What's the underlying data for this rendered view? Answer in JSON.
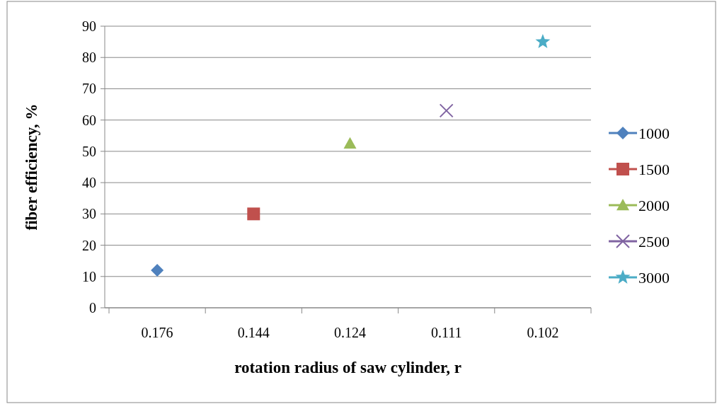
{
  "chart_data": {
    "type": "line",
    "xlabel": "rotation radius of saw cylinder, r",
    "ylabel": "fiber efficiency, %",
    "categories": [
      "0.176",
      "0.144",
      "0.124",
      "0.111",
      "0.102"
    ],
    "ylim": [
      0,
      90
    ],
    "yticks": [
      0,
      10,
      20,
      30,
      40,
      50,
      60,
      70,
      80,
      90
    ],
    "grid": "y",
    "legend": "right",
    "series": [
      {
        "name": "1000",
        "color": "#4f81bd",
        "marker": "diamond",
        "values": [
          12,
          null,
          null,
          null,
          null
        ]
      },
      {
        "name": "1500",
        "color": "#c0504d",
        "marker": "square",
        "values": [
          null,
          30,
          null,
          null,
          null
        ]
      },
      {
        "name": "2000",
        "color": "#9bbb59",
        "marker": "triangle",
        "values": [
          null,
          null,
          52.5,
          null,
          null
        ]
      },
      {
        "name": "2500",
        "color": "#8064a2",
        "marker": "cross",
        "values": [
          null,
          null,
          null,
          63,
          null
        ]
      },
      {
        "name": "3000",
        "color": "#4bacc6",
        "marker": "star",
        "values": [
          null,
          null,
          null,
          null,
          85
        ]
      }
    ]
  }
}
